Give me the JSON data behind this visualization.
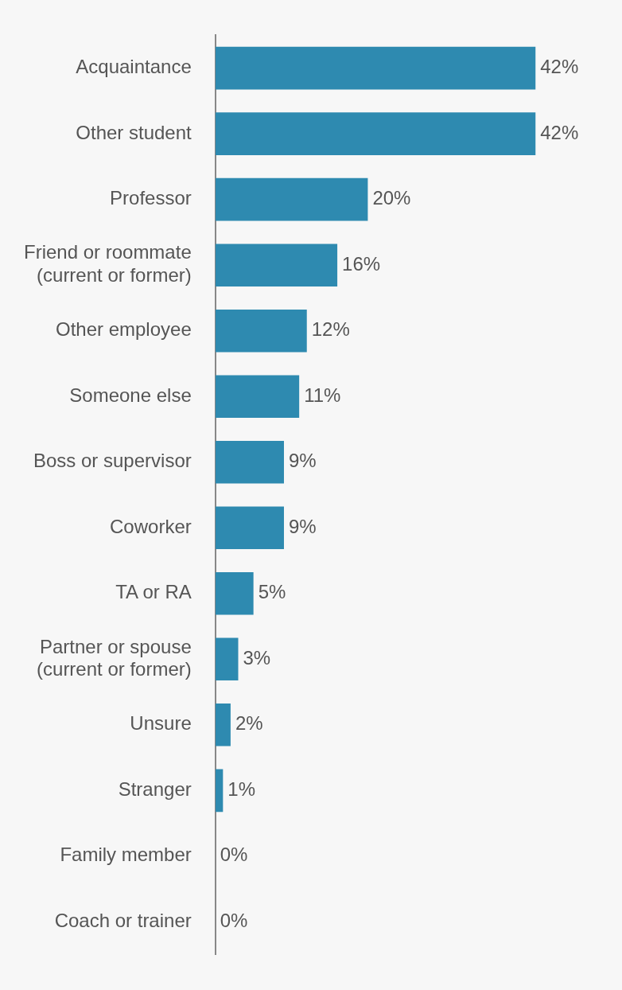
{
  "chart_data": {
    "type": "bar",
    "orientation": "horizontal",
    "categories": [
      "Acquaintance",
      "Other student",
      "Professor",
      "Friend or roommate (current or former)",
      "Other employee",
      "Someone else",
      "Boss or supervisor",
      "Coworker",
      "TA or RA",
      "Partner or spouse (current or former)",
      "Unsure",
      "Stranger",
      "Family member",
      "Coach or trainer"
    ],
    "values": [
      42,
      42,
      20,
      16,
      12,
      11,
      9,
      9,
      5,
      3,
      2,
      1,
      0,
      0
    ],
    "value_labels": [
      "42%",
      "42%",
      "20%",
      "16%",
      "12%",
      "11%",
      "9%",
      "9%",
      "5%",
      "3%",
      "2%",
      "1%",
      "0%",
      "0%"
    ],
    "color": "#2e8ab0",
    "tick_labels": "y",
    "grid": false,
    "legend": false
  }
}
